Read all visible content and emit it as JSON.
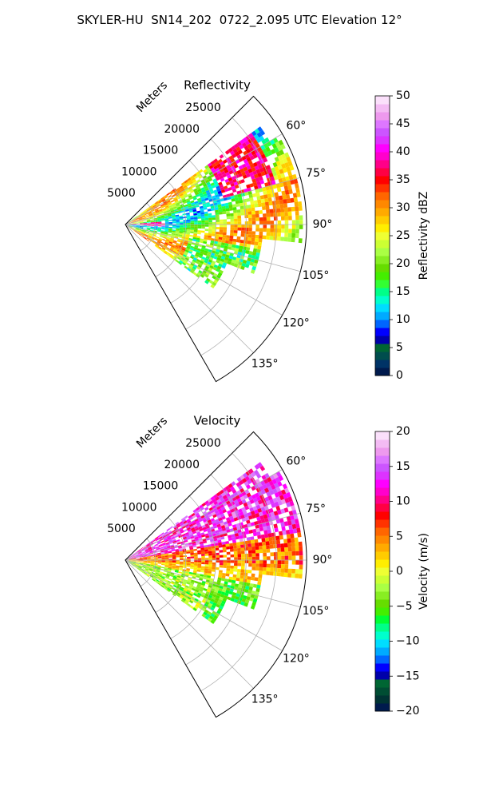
{
  "suptitle": "SKYLER-HU  SN14_202  0722_2.095 UTC Elevation 12°",
  "chart_data": [
    {
      "type": "heatmap",
      "title": "Reflectivity",
      "radial_axis_label": "Meters",
      "range_ticks": [
        5000,
        10000,
        15000,
        20000,
        25000
      ],
      "range_tick_labels": [
        "5000",
        "10000",
        "15000",
        "20000",
        "25000"
      ],
      "range_max": 30000,
      "azimuth_range": [
        45,
        150
      ],
      "azimuth_ticks": [
        60,
        75,
        90,
        105,
        120,
        135
      ],
      "azimuth_tick_labels": [
        "60°",
        "75°",
        "90°",
        "105°",
        "120°",
        "135°"
      ],
      "grid": true,
      "colorbar": {
        "label": "Reflectivity dBZ",
        "range": [
          0,
          50
        ],
        "ticks": [
          0,
          5,
          10,
          15,
          20,
          25,
          30,
          35,
          40,
          45,
          50
        ],
        "tick_labels": [
          "0",
          "5",
          "10",
          "15",
          "20",
          "25",
          "30",
          "35",
          "40",
          "45",
          "50"
        ],
        "colors": [
          "#001a4d",
          "#003366",
          "#004d4d",
          "#006633",
          "#0000aa",
          "#0000ff",
          "#0066ff",
          "#00aaff",
          "#00ddff",
          "#00ffcc",
          "#00ff88",
          "#33ff33",
          "#44ee00",
          "#66dd00",
          "#88ee22",
          "#aaff44",
          "#ccff33",
          "#eeff33",
          "#ffee00",
          "#ffcc00",
          "#ffaa00",
          "#ff8800",
          "#ff6600",
          "#ff3300",
          "#ff0000",
          "#ff0044",
          "#ff0088",
          "#ff00cc",
          "#ff00ff",
          "#dd33ff",
          "#cc55ff",
          "#dd77ff",
          "#ee99ee",
          "#f4bbf4",
          "#fbe0fb"
        ]
      }
    },
    {
      "type": "heatmap",
      "title": "Velocity",
      "radial_axis_label": "Meters",
      "range_ticks": [
        5000,
        10000,
        15000,
        20000,
        25000
      ],
      "range_tick_labels": [
        "5000",
        "10000",
        "15000",
        "20000",
        "25000"
      ],
      "range_max": 30000,
      "azimuth_range": [
        45,
        150
      ],
      "azimuth_ticks": [
        60,
        75,
        90,
        105,
        120,
        135
      ],
      "azimuth_tick_labels": [
        "60°",
        "75°",
        "90°",
        "105°",
        "120°",
        "135°"
      ],
      "grid": true,
      "colorbar": {
        "label": "Velocity (m/s)",
        "range": [
          -20,
          20
        ],
        "ticks": [
          -20,
          -15,
          -10,
          -5,
          0,
          5,
          10,
          15,
          20
        ],
        "tick_labels": [
          "−20",
          "−15",
          "−10",
          "−5",
          "0",
          "5",
          "10",
          "15",
          "20"
        ],
        "colors": [
          "#001a4d",
          "#003333",
          "#004d33",
          "#006633",
          "#0000aa",
          "#0000ff",
          "#0066ff",
          "#00aaff",
          "#00ddff",
          "#00ffcc",
          "#00ff88",
          "#00ff33",
          "#44ee00",
          "#66dd00",
          "#88ee22",
          "#aaff44",
          "#ccff33",
          "#eeff33",
          "#ffee00",
          "#ffcc00",
          "#ffaa00",
          "#ff8800",
          "#ff6600",
          "#ff3300",
          "#ff0000",
          "#ff0044",
          "#ff0088",
          "#ff00cc",
          "#ff00ff",
          "#dd33ff",
          "#cc55ff",
          "#dd77ff",
          "#ee99ee",
          "#f4bbf4",
          "#fbe0fb"
        ]
      }
    }
  ]
}
